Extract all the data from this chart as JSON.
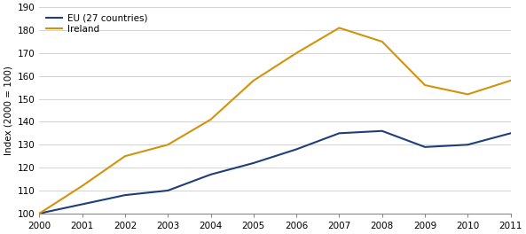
{
  "years": [
    2000,
    2001,
    2002,
    2003,
    2004,
    2005,
    2006,
    2007,
    2008,
    2009,
    2010,
    2011
  ],
  "eu_values": [
    100,
    104,
    108,
    110,
    117,
    122,
    128,
    135,
    136,
    129,
    130,
    135
  ],
  "ireland_values": [
    100,
    112,
    125,
    130,
    141,
    158,
    170,
    181,
    175,
    156,
    152,
    158
  ],
  "eu_color": "#1f3d7a",
  "ireland_color": "#d4920a",
  "ylabel": "Index (2000 = 100)",
  "ylim": [
    100,
    190
  ],
  "yticks": [
    100,
    110,
    120,
    130,
    140,
    150,
    160,
    170,
    180,
    190
  ],
  "xlim": [
    2000,
    2011
  ],
  "legend_eu": "EU (27 countries)",
  "legend_ireland": "Ireland",
  "line_width": 1.5,
  "background_color": "#ffffff",
  "grid_color": "#cccccc"
}
